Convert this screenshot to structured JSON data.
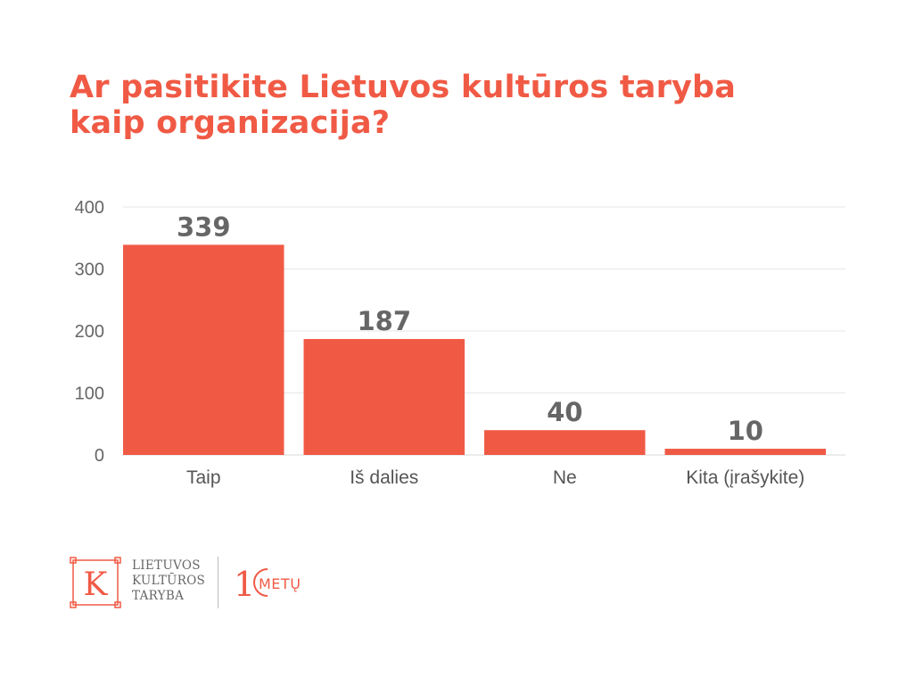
{
  "title": {
    "line1": "Ar pasitikite Lietuvos kultūros taryba",
    "line2": "kaip organizacija?"
  },
  "chart_data": {
    "type": "bar",
    "categories": [
      "Taip",
      "Iš dalies",
      "Ne",
      "Kita (įrašykite)"
    ],
    "values": [
      339,
      187,
      40,
      10
    ],
    "data_labels": [
      "339",
      "187",
      "40",
      "10"
    ],
    "ylim": [
      0,
      400
    ],
    "yticks": [
      0,
      100,
      200,
      300,
      400
    ],
    "ytick_labels": [
      "0",
      "100",
      "200",
      "300",
      "400"
    ],
    "xlabel": "",
    "ylabel": "",
    "grid": true,
    "bar_color": "#f05a45",
    "grid_color": "#e6e6e6"
  },
  "footer": {
    "logo_letter": "K",
    "org_line1": "LIETUVOS",
    "org_line2": "KULTŪROS",
    "org_line3": "TARYBA",
    "anniversary_digit": "1",
    "anniversary_text": "METŲ"
  },
  "colors": {
    "accent": "#f05a45",
    "text_gray": "#666666"
  }
}
